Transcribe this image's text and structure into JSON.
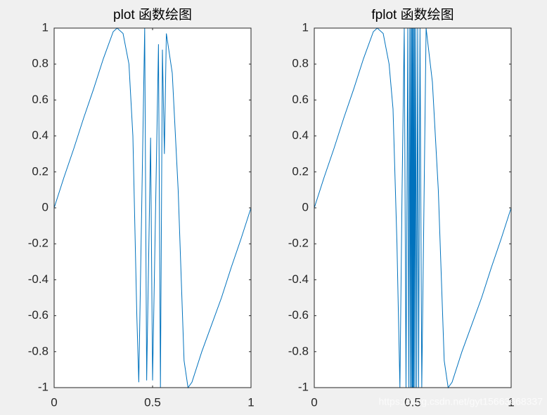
{
  "chart_data": [
    {
      "type": "line",
      "title": "plot 函数绘图",
      "x": [
        0,
        0.05,
        0.1,
        0.15,
        0.2,
        0.25,
        0.3,
        0.32,
        0.35,
        0.38,
        0.4,
        0.42,
        0.43,
        0.46,
        0.47,
        0.49,
        0.5,
        0.53,
        0.54,
        0.55,
        0.56,
        0.57,
        0.6,
        0.63,
        0.66,
        0.68,
        0.7,
        0.75,
        0.8,
        0.85,
        0.9,
        0.95,
        1
      ],
      "values": [
        0,
        0.17,
        0.33,
        0.5,
        0.66,
        0.83,
        0.98,
        1,
        0.97,
        0.8,
        0.4,
        -0.6,
        -0.97,
        1,
        -0.96,
        0.39,
        -0.96,
        0.91,
        -1,
        0.88,
        0.3,
        0.97,
        0.75,
        0.1,
        -0.85,
        -1,
        -0.97,
        -0.8,
        -0.65,
        -0.5,
        -0.33,
        -0.17,
        0
      ],
      "color": "#0072bd",
      "xlim": [
        0,
        1
      ],
      "xticks": [
        0,
        0.5,
        1
      ],
      "ylim": [
        -1,
        1
      ],
      "yticks": [
        -1,
        -0.8,
        -0.6,
        -0.4,
        -0.2,
        0,
        0.2,
        0.4,
        0.6,
        0.8,
        1
      ]
    },
    {
      "type": "line",
      "title": "fplot 函数绘图",
      "x": [
        0,
        0.05,
        0.1,
        0.15,
        0.2,
        0.25,
        0.3,
        0.32,
        0.35,
        0.38,
        0.4,
        0.42,
        0.435,
        0.446,
        0.457,
        0.466,
        0.475,
        0.48,
        0.485,
        0.488,
        0.491,
        0.494,
        0.496,
        0.498,
        0.5,
        0.502,
        0.504,
        0.506,
        0.509,
        0.512,
        0.515,
        0.52,
        0.525,
        0.53,
        0.537,
        0.546,
        0.557,
        0.568,
        0.6,
        0.63,
        0.66,
        0.68,
        0.7,
        0.75,
        0.8,
        0.85,
        0.9,
        0.95,
        1
      ],
      "values": [
        0,
        0.17,
        0.33,
        0.5,
        0.66,
        0.83,
        0.98,
        1,
        0.97,
        0.8,
        0.55,
        -0.2,
        -1,
        0.1,
        1,
        -1,
        1,
        -1,
        1,
        -1,
        1,
        -1,
        1,
        -1,
        1,
        -1,
        1,
        -1,
        1,
        -1,
        1,
        -1,
        1,
        -1,
        1,
        -1,
        0,
        1,
        0.7,
        0.1,
        -0.85,
        -1,
        -0.97,
        -0.8,
        -0.65,
        -0.5,
        -0.33,
        -0.17,
        0
      ],
      "color": "#0072bd",
      "xlim": [
        0,
        1
      ],
      "xticks": [
        0,
        0.5,
        1
      ],
      "ylim": [
        -1,
        1
      ],
      "yticks": [
        -1,
        -0.8,
        -0.6,
        -0.4,
        -0.2,
        0,
        0.2,
        0.4,
        0.6,
        0.8,
        1
      ]
    }
  ],
  "watermark": "https://blog.csdn.net/gyt15663668337"
}
